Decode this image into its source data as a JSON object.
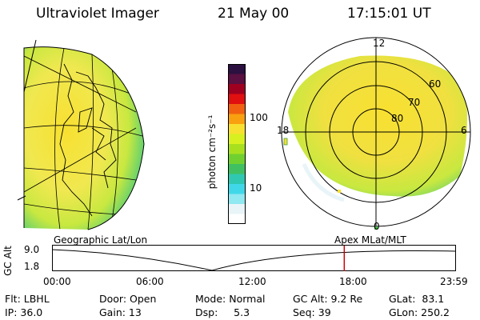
{
  "header": {
    "instrument": "Ultraviolet Imager",
    "date": "21 May 00",
    "time": "17:15:01 UT"
  },
  "colorbar": {
    "unit_label": "photon cm⁻²s⁻¹",
    "ticks": [
      "100",
      "10"
    ],
    "colors": [
      "#2b1040",
      "#5a1040",
      "#a00020",
      "#e01010",
      "#f06010",
      "#f8a010",
      "#f8e030",
      "#d8f020",
      "#a8e020",
      "#70d030",
      "#40c060",
      "#30c8b0",
      "#40d8e8",
      "#90e8f0",
      "#e8f4f8",
      "#ffffff"
    ]
  },
  "polar_labels": [
    "12",
    "60",
    "70",
    "80",
    "18",
    "6",
    "0"
  ],
  "timeline": {
    "left_title": "Geographic Lat/Lon",
    "right_title": "Apex MLat/MLT",
    "axis_label": "GC Alt",
    "y_high": "9.0",
    "y_low": "1.8",
    "x_ticks": [
      "00:00",
      "06:00",
      "12:00",
      "18:00",
      "23:59"
    ],
    "current_time_fraction": 0.7243,
    "marker_color": "#cc0000"
  },
  "status": {
    "flt": "Flt: LBHL",
    "door": "Door: Open",
    "mode": "Mode: Normal",
    "gcalt": "GC Alt: 9.2 Re",
    "glat": "GLat:  83.1",
    "ip": "IP: 36.0",
    "gain": "Gain: 13",
    "dsp": "Dsp:     5.3",
    "seq": "Seq: 39",
    "glon": "GLon: 250.2"
  }
}
